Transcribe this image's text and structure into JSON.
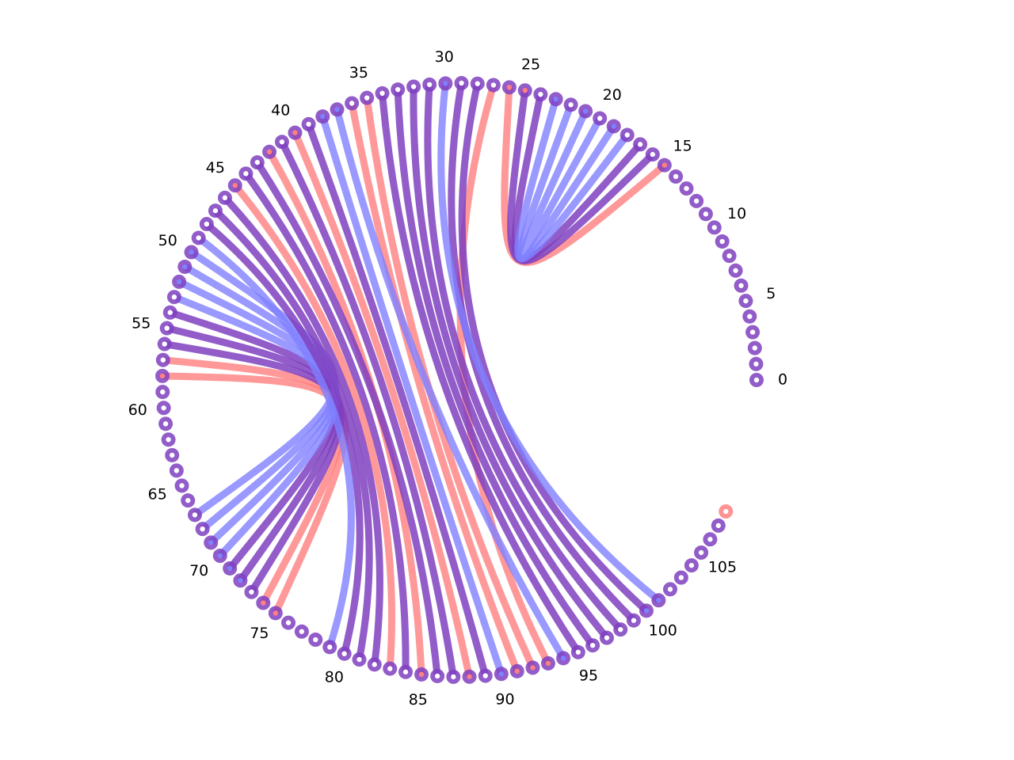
{
  "diagram": {
    "type": "arc-diagram-circular",
    "node_count": 109,
    "tick_labels": [
      "0",
      "5",
      "10",
      "15",
      "20",
      "25",
      "30",
      "35",
      "40",
      "45",
      "50",
      "55",
      "60",
      "65",
      "70",
      "75",
      "80",
      "85",
      "90",
      "95",
      "100",
      "105"
    ],
    "colors": {
      "red": "#ff8080",
      "blue": "#8080ff",
      "purple": "#7f3fbf"
    },
    "node_colors": {
      "default": "purple",
      "red_nodes": [
        108
      ],
      "center_dot_red": [
        15,
        25,
        26,
        40,
        42,
        45,
        58,
        74,
        75,
        85,
        88,
        91,
        92,
        93
      ],
      "center_dot_blue": [
        19,
        21,
        23,
        30,
        37,
        38,
        50,
        51,
        52,
        69,
        70,
        71,
        72,
        90,
        94,
        100,
        101
      ]
    },
    "hairpins": [
      {
        "center": 58.5,
        "arcs": [
          {
            "from": 58,
            "to": 75,
            "color": "red"
          },
          {
            "from": 57,
            "to": 74,
            "color": "red"
          },
          {
            "from": 56,
            "to": 73,
            "color": "purple"
          },
          {
            "from": 55,
            "to": 72,
            "color": "purple"
          },
          {
            "from": 54,
            "to": 71,
            "color": "purple"
          },
          {
            "from": 53,
            "to": 70,
            "color": "blue"
          },
          {
            "from": 52,
            "to": 69,
            "color": "blue"
          },
          {
            "from": 51,
            "to": 68,
            "color": "blue"
          },
          {
            "from": 50,
            "to": 67,
            "color": "blue"
          }
        ]
      },
      {
        "center": 20.5,
        "arcs": [
          {
            "from": 15,
            "to": 26,
            "color": "red"
          },
          {
            "from": 16,
            "to": 25,
            "color": "purple"
          },
          {
            "from": 17,
            "to": 24,
            "color": "purple"
          },
          {
            "from": 18,
            "to": 23,
            "color": "blue"
          },
          {
            "from": 19,
            "to": 22,
            "color": "blue"
          },
          {
            "from": 20,
            "to": 21,
            "color": "blue"
          }
        ]
      }
    ],
    "long_arcs": [
      {
        "from": 27,
        "to": 93,
        "color": "red"
      },
      {
        "from": 28,
        "to": 100,
        "color": "purple"
      },
      {
        "from": 29,
        "to": 99,
        "color": "purple"
      },
      {
        "from": 30,
        "to": 101,
        "color": "blue"
      },
      {
        "from": 31,
        "to": 98,
        "color": "purple"
      },
      {
        "from": 32,
        "to": 97,
        "color": "purple"
      },
      {
        "from": 33,
        "to": 96,
        "color": "purple"
      },
      {
        "from": 34,
        "to": 95,
        "color": "purple"
      },
      {
        "from": 35,
        "to": 92,
        "color": "red"
      },
      {
        "from": 36,
        "to": 91,
        "color": "red"
      },
      {
        "from": 37,
        "to": 94,
        "color": "blue"
      },
      {
        "from": 38,
        "to": 90,
        "color": "blue"
      },
      {
        "from": 39,
        "to": 89,
        "color": "purple"
      },
      {
        "from": 40,
        "to": 88,
        "color": "red"
      },
      {
        "from": 41,
        "to": 87,
        "color": "purple"
      },
      {
        "from": 42,
        "to": 85,
        "color": "red"
      },
      {
        "from": 43,
        "to": 86,
        "color": "purple"
      },
      {
        "from": 44,
        "to": 84,
        "color": "purple"
      },
      {
        "from": 45,
        "to": 83,
        "color": "red"
      },
      {
        "from": 46,
        "to": 82,
        "color": "purple"
      },
      {
        "from": 47,
        "to": 81,
        "color": "purple"
      },
      {
        "from": 48,
        "to": 80,
        "color": "purple"
      },
      {
        "from": 49,
        "to": 79,
        "color": "blue"
      }
    ]
  }
}
